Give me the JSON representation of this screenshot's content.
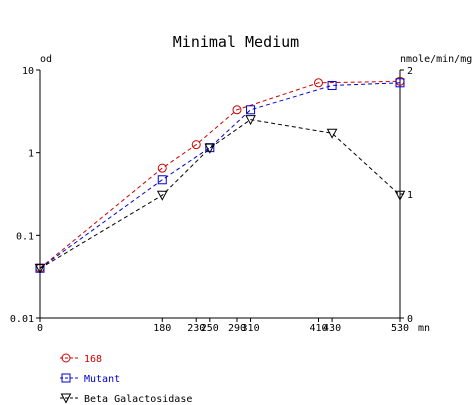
{
  "chart_data": {
    "type": "line",
    "title": "Minimal Medium",
    "y_left_label": "od",
    "y_right_label": "nmole/min/mg",
    "x_unit_label": "mn",
    "x_ticks": [
      0,
      180,
      230,
      250,
      290,
      310,
      410,
      430,
      530
    ],
    "x_tick_labels": [
      "0",
      "180",
      "230",
      "250",
      "290",
      "310",
      "410",
      "430",
      "530"
    ],
    "xlim": [
      0,
      530
    ],
    "y_left_scale": "log",
    "y_left_ticks": [
      "10",
      "1",
      "0.1",
      "0.01"
    ],
    "y_left_lim": [
      0.01,
      10
    ],
    "y_right_ticks": [
      "2",
      "1",
      "0"
    ],
    "y_right_lim": [
      0,
      2
    ],
    "grid": false,
    "legend_position": "bottom-left",
    "series": [
      {
        "name": "168",
        "color": "#cc0000",
        "marker": "circle",
        "axis": "left",
        "x": [
          0,
          180,
          230,
          290,
          410,
          530
        ],
        "y": [
          0.04,
          0.65,
          1.25,
          3.3,
          7.0,
          7.3
        ]
      },
      {
        "name": "Mutant",
        "color": "#0000cc",
        "marker": "square",
        "axis": "left",
        "x": [
          0,
          180,
          250,
          310,
          430,
          530
        ],
        "y": [
          0.04,
          0.47,
          1.15,
          3.3,
          6.5,
          7.0
        ]
      },
      {
        "name": "Beta Galactosidase",
        "color": "#000000",
        "marker": "triangle-down",
        "axis": "right",
        "x": [
          0,
          180,
          250,
          310,
          430,
          530
        ],
        "y": [
          0.4,
          0.99,
          1.37,
          1.6,
          1.49,
          0.99
        ]
      }
    ]
  }
}
